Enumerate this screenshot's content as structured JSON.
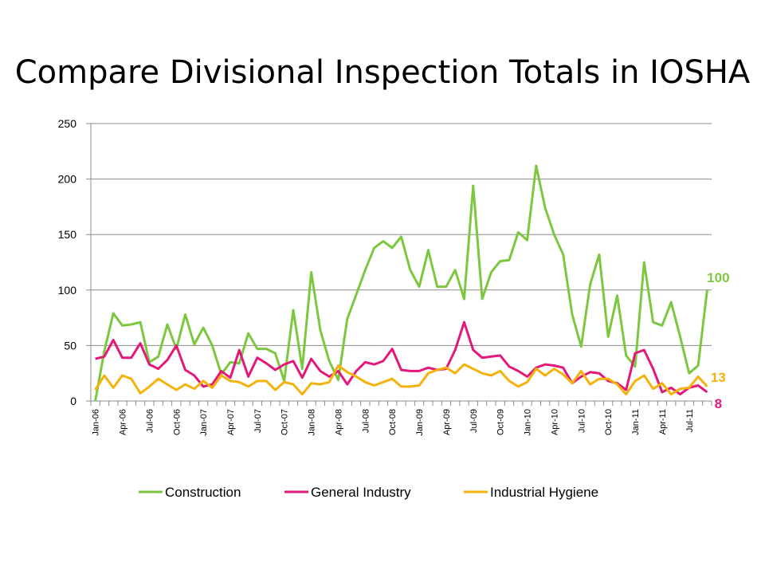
{
  "chart_data": {
    "type": "line",
    "title": "Compare Divisional Inspection Totals in IOSHA",
    "ylim": [
      0,
      250
    ],
    "yticks": [
      "0",
      "50",
      "100",
      "150",
      "200",
      "250"
    ],
    "xtick_labels": [
      "Jan-06",
      "Apr-06",
      "Jul-06",
      "Oct-06",
      "Jan-07",
      "Apr-07",
      "Jul-07",
      "Oct-07",
      "Jan-08",
      "Apr-08",
      "Jul-08",
      "Oct-08",
      "Jan-09",
      "Apr-09",
      "Jul-09",
      "Oct-09",
      "Jan-10",
      "Apr-10",
      "Jul-10",
      "Oct-10",
      "Jan-11",
      "Apr-11",
      "Jul-11"
    ],
    "grid": true,
    "legend_position": "bottom",
    "series": [
      {
        "name": "Construction",
        "color": "#7DC740",
        "end_label": "100",
        "values": [
          0,
          45,
          79,
          68,
          69,
          71,
          35,
          40,
          69,
          47,
          78,
          51,
          66,
          50,
          24,
          35,
          34,
          61,
          47,
          47,
          43,
          18,
          82,
          29,
          116,
          64,
          36,
          19,
          74,
          96,
          118,
          138,
          144,
          138,
          148,
          118,
          103,
          136,
          103,
          103,
          118,
          92,
          194,
          92,
          116,
          126,
          127,
          152,
          145,
          212,
          174,
          150,
          132,
          78,
          49,
          105,
          132,
          58,
          95,
          41,
          31,
          125,
          71,
          68,
          89,
          58,
          25,
          32,
          100
        ]
      },
      {
        "name": "General Industry",
        "color": "#E2197A",
        "end_label": "8",
        "values": [
          38,
          40,
          55,
          39,
          39,
          52,
          33,
          29,
          37,
          50,
          28,
          23,
          13,
          15,
          27,
          21,
          46,
          22,
          39,
          34,
          28,
          33,
          36,
          21,
          38,
          27,
          22,
          27,
          15,
          27,
          35,
          33,
          36,
          47,
          28,
          27,
          27,
          30,
          28,
          29,
          46,
          71,
          46,
          39,
          40,
          41,
          31,
          27,
          22,
          30,
          33,
          32,
          30,
          16,
          22,
          26,
          25,
          18,
          16,
          10,
          43,
          46,
          29,
          8,
          12,
          6,
          12,
          14,
          8
        ]
      },
      {
        "name": "Industrial Hygiene",
        "color": "#F5B20D",
        "end_label": "13",
        "values": [
          10,
          23,
          12,
          23,
          20,
          7,
          13,
          20,
          15,
          10,
          15,
          11,
          18,
          12,
          23,
          18,
          17,
          13,
          18,
          18,
          10,
          17,
          15,
          6,
          16,
          15,
          17,
          32,
          26,
          22,
          17,
          14,
          17,
          20,
          13,
          13,
          14,
          25,
          28,
          30,
          25,
          33,
          29,
          25,
          23,
          27,
          18,
          13,
          17,
          29,
          23,
          29,
          24,
          16,
          27,
          15,
          20,
          20,
          15,
          6,
          18,
          23,
          11,
          16,
          6,
          11,
          12,
          22,
          13
        ]
      }
    ]
  }
}
